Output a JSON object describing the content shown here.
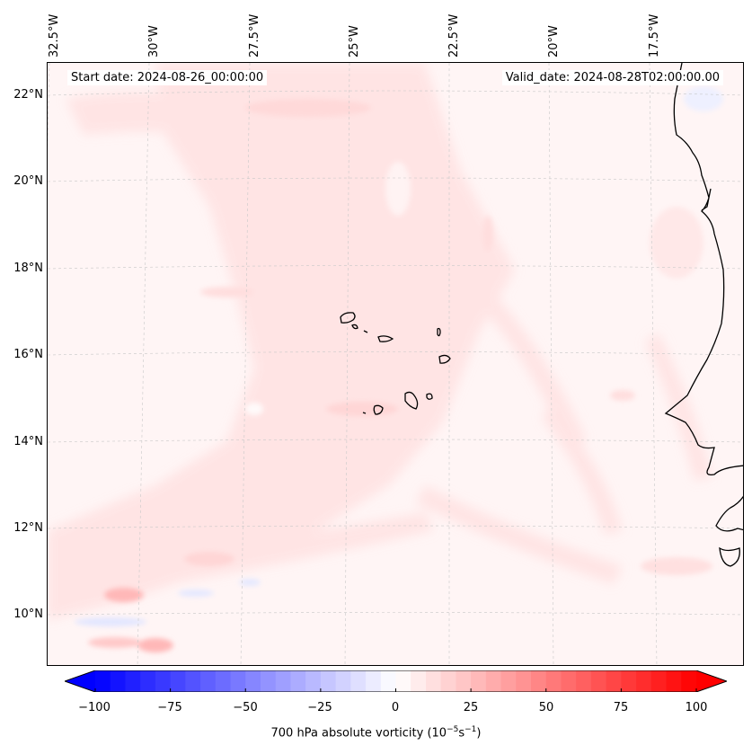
{
  "map": {
    "start_date": "Start date: 2024-08-26_00:00:00",
    "valid_date": "Valid_date: 2024-08-28T02:00:00.00",
    "lon_labels": [
      "32.5°W",
      "30°W",
      "27.5°W",
      "25°W",
      "22.5°W",
      "20°W",
      "17.5°W"
    ],
    "lat_labels": [
      "22°N",
      "20°N",
      "18°N",
      "16°N",
      "14°N",
      "12°N",
      "10°N"
    ],
    "field": "700 hPa absolute vorticity",
    "colormap": "bwr",
    "coastline_color": "#000000"
  },
  "colorbar": {
    "ticks": [
      "−100",
      "−75",
      "−50",
      "−25",
      "0",
      "25",
      "50",
      "75",
      "100"
    ],
    "tick_values": [
      -100,
      -75,
      -50,
      -25,
      0,
      25,
      50,
      75,
      100
    ],
    "min": -100,
    "max": 100,
    "title": "700 hPa absolute vorticity (10",
    "title_sup1": "−5",
    "title_mid": "s",
    "title_sup2": "−1",
    "title_end": ")",
    "color_min": "#0000ff",
    "color_mid": "#ffffff",
    "color_max": "#ff0000"
  }
}
